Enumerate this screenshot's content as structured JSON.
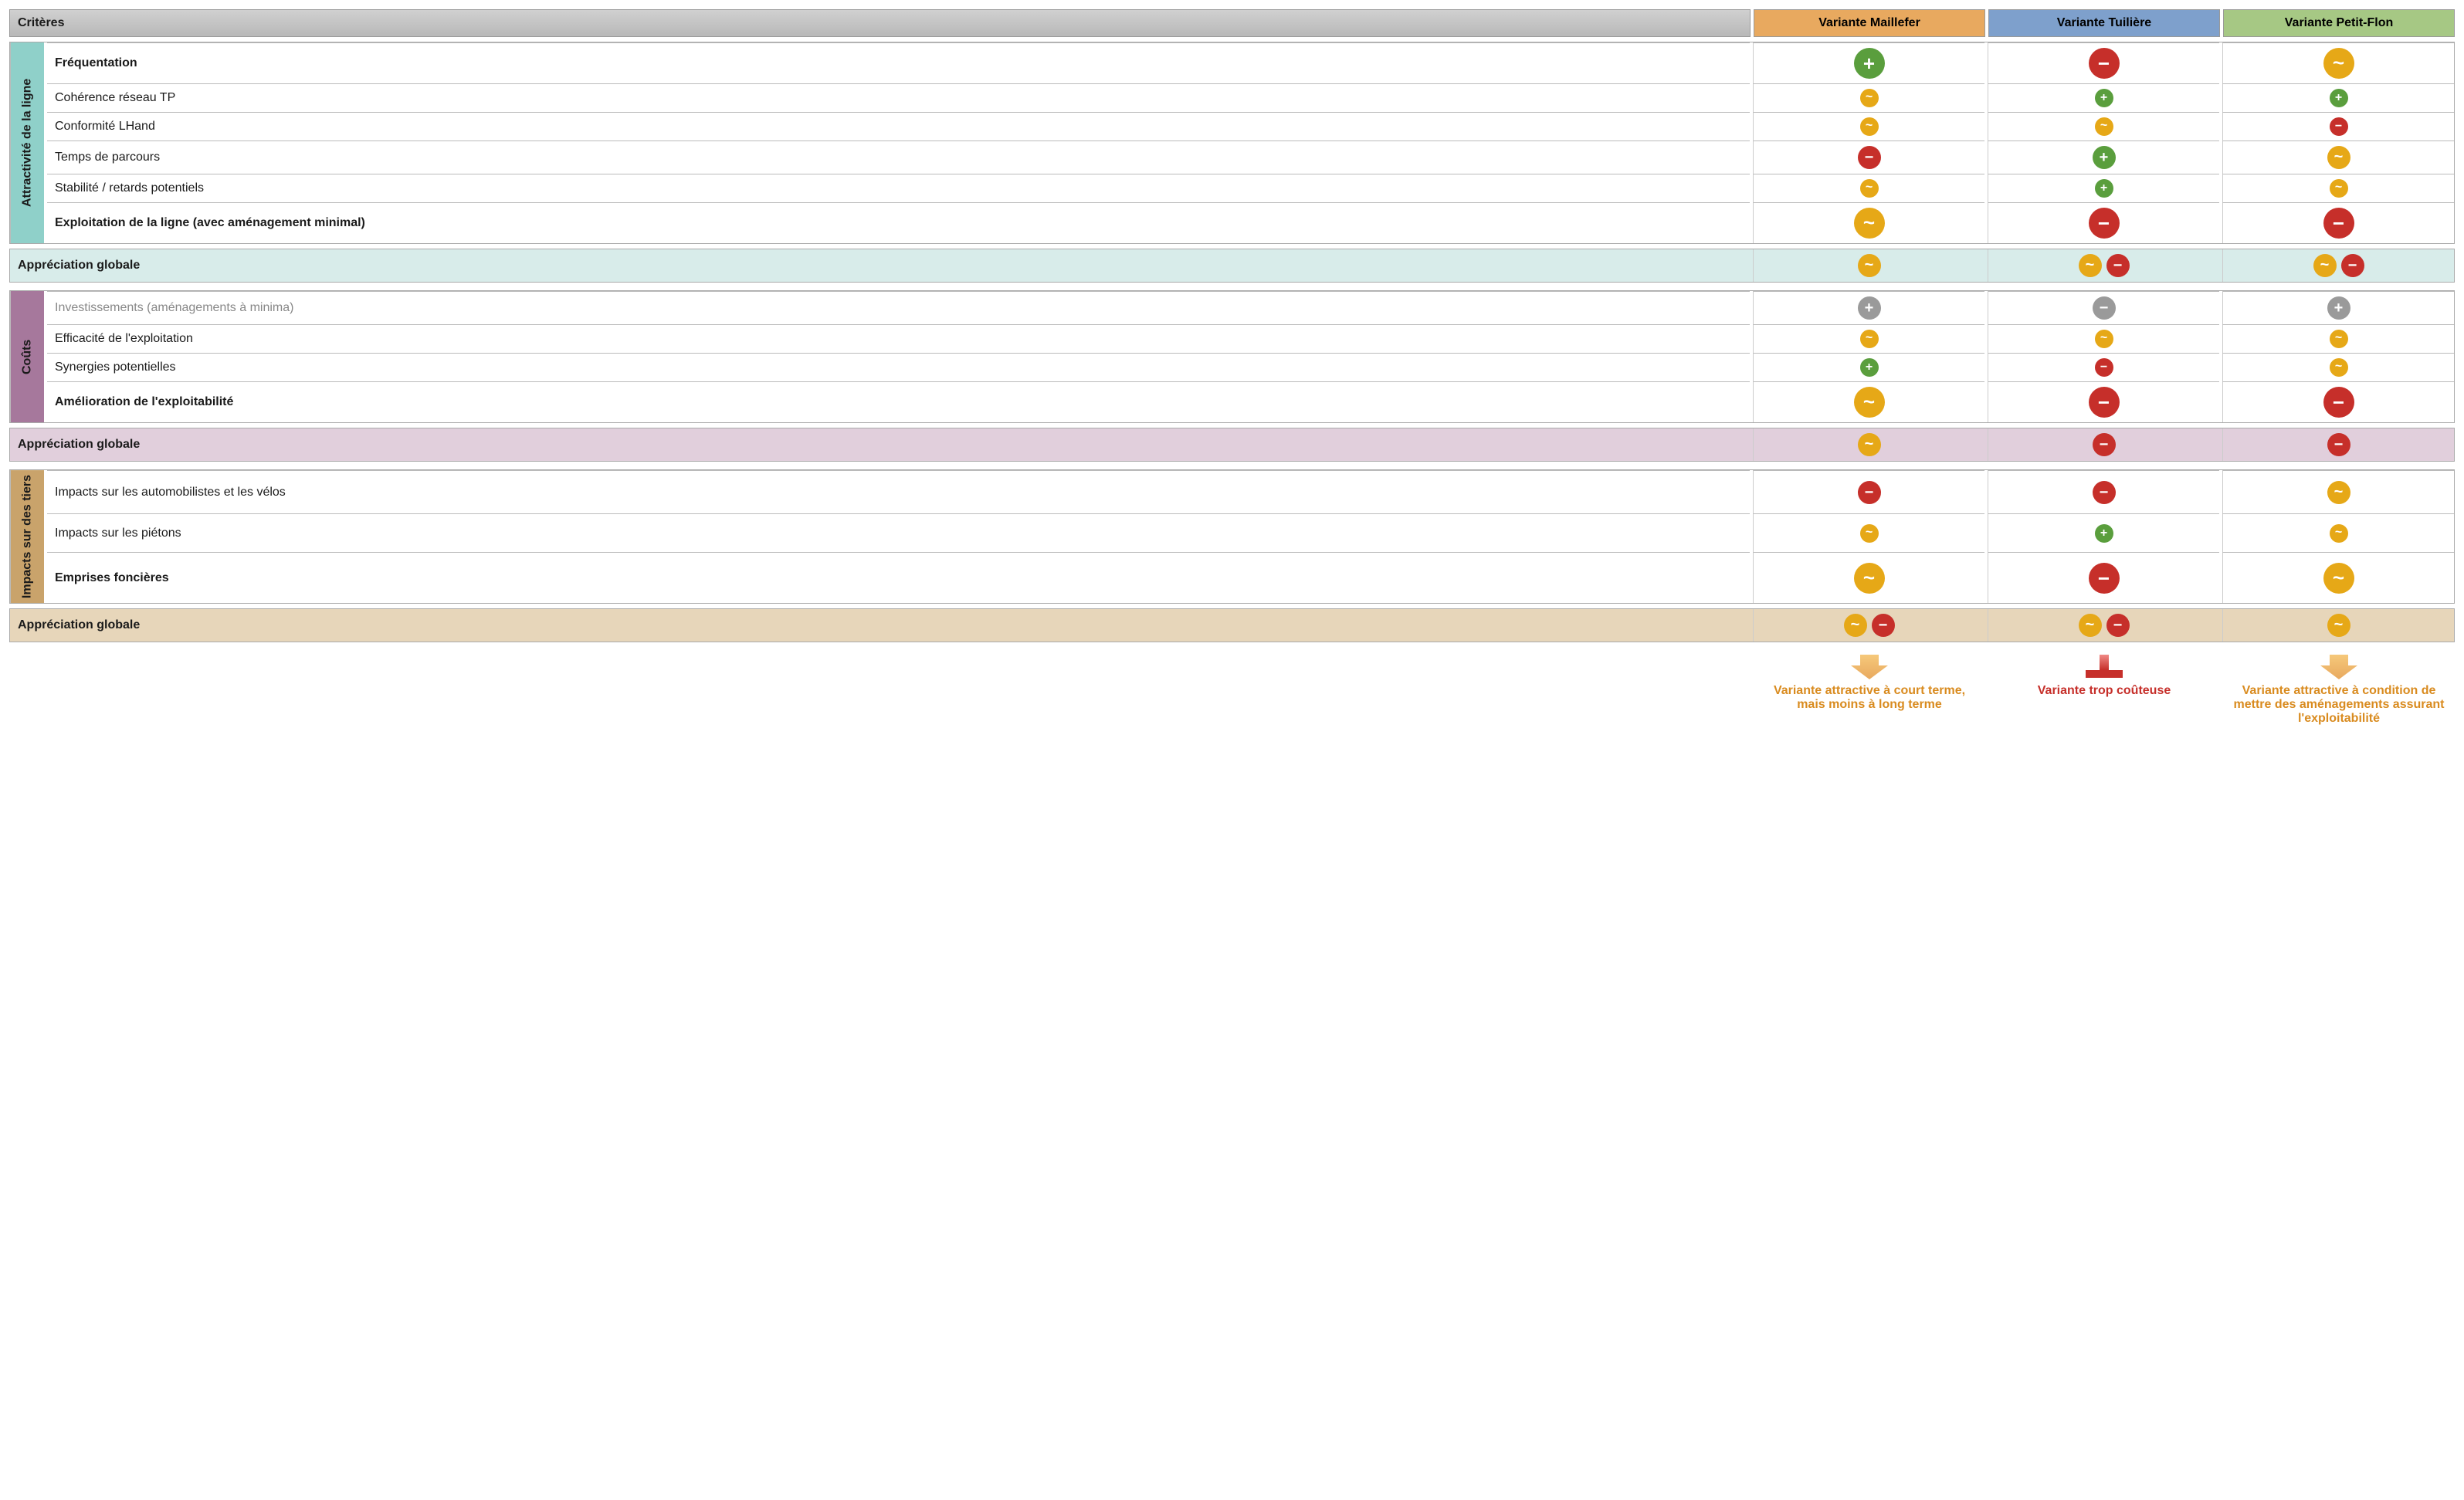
{
  "colors": {
    "grey_header": "#bfbfbf",
    "variant_headers": [
      "#e8a95f",
      "#7ea0cc",
      "#a6c884"
    ],
    "group_tabs": [
      "#8fd0c9",
      "#a6789c",
      "#c9a36b"
    ],
    "summary_bg": [
      "#d8ecea",
      "#e1cfdc",
      "#e7d6ba"
    ],
    "icon": {
      "plus_green": "#5a9e3d",
      "minus_red": "#c62f2a",
      "tilde_yellow": "#e6a817",
      "neutral_grey": "#9a9a9a"
    },
    "conclusion_text": [
      "#d98b1f",
      "#c62f2a",
      "#d98b1f"
    ],
    "arrow_orange_top": "#f6c97a",
    "arrow_orange_bottom": "#e8a95f",
    "bar_red_top": "#f08a86",
    "bar_red_bottom": "#c62f2a"
  },
  "header": {
    "criteres": "Critères",
    "variants": [
      "Variante Maillefer",
      "Variante Tuilière",
      "Variante Petit-Flon"
    ]
  },
  "groups": [
    {
      "id": "attractivite",
      "tab": "Attractivité de la ligne",
      "rows": [
        {
          "label": "Fréquentation",
          "bold": true,
          "icons": [
            [
              {
                "k": "plus",
                "c": "plus_green",
                "s": "lg"
              }
            ],
            [
              {
                "k": "minus",
                "c": "minus_red",
                "s": "lg"
              }
            ],
            [
              {
                "k": "tilde",
                "c": "tilde_yellow",
                "s": "lg"
              }
            ]
          ]
        },
        {
          "label": "Cohérence réseau TP",
          "icons": [
            [
              {
                "k": "tilde",
                "c": "tilde_yellow",
                "s": "sm"
              }
            ],
            [
              {
                "k": "plus",
                "c": "plus_green",
                "s": "sm"
              }
            ],
            [
              {
                "k": "plus",
                "c": "plus_green",
                "s": "sm"
              }
            ]
          ]
        },
        {
          "label": "Conformité LHand",
          "icons": [
            [
              {
                "k": "tilde",
                "c": "tilde_yellow",
                "s": "sm"
              }
            ],
            [
              {
                "k": "tilde",
                "c": "tilde_yellow",
                "s": "sm"
              }
            ],
            [
              {
                "k": "minus",
                "c": "minus_red",
                "s": "sm"
              }
            ]
          ]
        },
        {
          "label": "Temps de parcours",
          "icons": [
            [
              {
                "k": "minus",
                "c": "minus_red",
                "s": "md"
              }
            ],
            [
              {
                "k": "plus",
                "c": "plus_green",
                "s": "md"
              }
            ],
            [
              {
                "k": "tilde",
                "c": "tilde_yellow",
                "s": "md"
              }
            ]
          ]
        },
        {
          "label": "Stabilité / retards potentiels",
          "icons": [
            [
              {
                "k": "tilde",
                "c": "tilde_yellow",
                "s": "sm"
              }
            ],
            [
              {
                "k": "plus",
                "c": "plus_green",
                "s": "sm"
              }
            ],
            [
              {
                "k": "tilde",
                "c": "tilde_yellow",
                "s": "sm"
              }
            ]
          ]
        },
        {
          "label": "Exploitation de la ligne (avec aménagement minimal)",
          "bold": true,
          "icons": [
            [
              {
                "k": "tilde",
                "c": "tilde_yellow",
                "s": "lg"
              }
            ],
            [
              {
                "k": "minus",
                "c": "minus_red",
                "s": "lg"
              }
            ],
            [
              {
                "k": "minus",
                "c": "minus_red",
                "s": "lg"
              }
            ]
          ]
        }
      ],
      "summary": {
        "label": "Appréciation globale",
        "icons": [
          [
            {
              "k": "tilde",
              "c": "tilde_yellow",
              "s": "md"
            }
          ],
          [
            {
              "k": "tilde",
              "c": "tilde_yellow",
              "s": "md"
            },
            {
              "k": "minus",
              "c": "minus_red",
              "s": "md"
            }
          ],
          [
            {
              "k": "tilde",
              "c": "tilde_yellow",
              "s": "md"
            },
            {
              "k": "minus",
              "c": "minus_red",
              "s": "md"
            }
          ]
        ]
      }
    },
    {
      "id": "couts",
      "tab": "Coûts",
      "rows": [
        {
          "label": "Investissements (aménagements à minima)",
          "grey": true,
          "icons": [
            [
              {
                "k": "plus",
                "c": "neutral_grey",
                "s": "md"
              }
            ],
            [
              {
                "k": "minus",
                "c": "neutral_grey",
                "s": "md"
              }
            ],
            [
              {
                "k": "plus",
                "c": "neutral_grey",
                "s": "md"
              }
            ]
          ]
        },
        {
          "label": "Efficacité de l'exploitation",
          "icons": [
            [
              {
                "k": "tilde",
                "c": "tilde_yellow",
                "s": "sm"
              }
            ],
            [
              {
                "k": "tilde",
                "c": "tilde_yellow",
                "s": "sm"
              }
            ],
            [
              {
                "k": "tilde",
                "c": "tilde_yellow",
                "s": "sm"
              }
            ]
          ]
        },
        {
          "label": "Synergies potentielles",
          "icons": [
            [
              {
                "k": "plus",
                "c": "plus_green",
                "s": "sm"
              }
            ],
            [
              {
                "k": "minus",
                "c": "minus_red",
                "s": "sm"
              }
            ],
            [
              {
                "k": "tilde",
                "c": "tilde_yellow",
                "s": "sm"
              }
            ]
          ]
        },
        {
          "label": "Amélioration de l'exploitabilité",
          "bold": true,
          "icons": [
            [
              {
                "k": "tilde",
                "c": "tilde_yellow",
                "s": "lg"
              }
            ],
            [
              {
                "k": "minus",
                "c": "minus_red",
                "s": "lg"
              }
            ],
            [
              {
                "k": "minus",
                "c": "minus_red",
                "s": "lg"
              }
            ]
          ]
        }
      ],
      "summary": {
        "label": "Appréciation globale",
        "icons": [
          [
            {
              "k": "tilde",
              "c": "tilde_yellow",
              "s": "md"
            }
          ],
          [
            {
              "k": "minus",
              "c": "minus_red",
              "s": "md"
            }
          ],
          [
            {
              "k": "minus",
              "c": "minus_red",
              "s": "md"
            }
          ]
        ]
      }
    },
    {
      "id": "impacts",
      "tab": "Impacts sur des tiers",
      "rows": [
        {
          "label": "Impacts sur les automobilistes et les vélos",
          "icons": [
            [
              {
                "k": "minus",
                "c": "minus_red",
                "s": "md"
              }
            ],
            [
              {
                "k": "minus",
                "c": "minus_red",
                "s": "md"
              }
            ],
            [
              {
                "k": "tilde",
                "c": "tilde_yellow",
                "s": "md"
              }
            ]
          ]
        },
        {
          "label": "Impacts sur les piétons",
          "icons": [
            [
              {
                "k": "tilde",
                "c": "tilde_yellow",
                "s": "sm"
              }
            ],
            [
              {
                "k": "plus",
                "c": "plus_green",
                "s": "sm"
              }
            ],
            [
              {
                "k": "tilde",
                "c": "tilde_yellow",
                "s": "sm"
              }
            ]
          ]
        },
        {
          "label": "Emprises foncières",
          "bold": true,
          "icons": [
            [
              {
                "k": "tilde",
                "c": "tilde_yellow",
                "s": "lg"
              }
            ],
            [
              {
                "k": "minus",
                "c": "minus_red",
                "s": "lg"
              }
            ],
            [
              {
                "k": "tilde",
                "c": "tilde_yellow",
                "s": "lg"
              }
            ]
          ]
        }
      ],
      "summary": {
        "label": "Appréciation globale",
        "icons": [
          [
            {
              "k": "tilde",
              "c": "tilde_yellow",
              "s": "md"
            },
            {
              "k": "minus",
              "c": "minus_red",
              "s": "md"
            }
          ],
          [
            {
              "k": "tilde",
              "c": "tilde_yellow",
              "s": "md"
            },
            {
              "k": "minus",
              "c": "minus_red",
              "s": "md"
            }
          ],
          [
            {
              "k": "tilde",
              "c": "tilde_yellow",
              "s": "md"
            }
          ]
        ]
      }
    }
  ],
  "conclusions": [
    {
      "text": "Variante attractive à court terme, mais moins à long terme",
      "style": "arrow",
      "color_key": 0
    },
    {
      "text": "Variante trop coûteuse",
      "style": "bar",
      "color_key": 1
    },
    {
      "text": "Variante attractive à condition de mettre des aménagements assurant l'exploitabilité",
      "style": "arrow",
      "color_key": 2
    }
  ]
}
